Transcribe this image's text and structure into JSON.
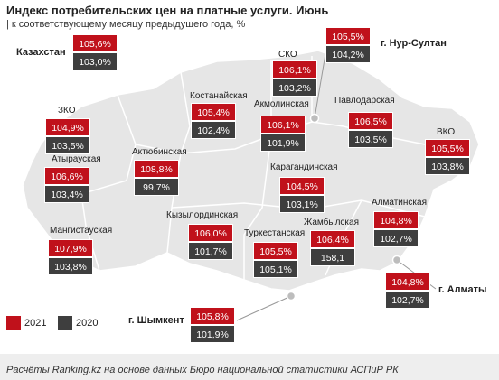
{
  "title": "Индекс потребительских цен на платные услуги. Июнь",
  "subtitle": "| к соответствующему месяцу предыдущего года, %",
  "colors": {
    "y2021": "#c0111b",
    "y2020": "#3e3e3e",
    "map_fill": "#e6e6e6",
    "map_border": "#ffffff"
  },
  "legend": [
    {
      "label": "2021"
    },
    {
      "label": "2020"
    }
  ],
  "regions": [
    {
      "name": "Казахстан",
      "v2021": "105,6%",
      "v2020": "103,0%"
    },
    {
      "name": "г. Нур-Султан",
      "v2021": "105,5%",
      "v2020": "104,2%"
    },
    {
      "name": "СКО",
      "v2021": "106,1%",
      "v2020": "103,2%"
    },
    {
      "name": "Костанайская",
      "v2021": "105,4%",
      "v2020": "102,4%"
    },
    {
      "name": "Акмолинская",
      "v2021": "106,1%",
      "v2020": "101,9%"
    },
    {
      "name": "Павлодарская",
      "v2021": "106,5%",
      "v2020": "103,5%"
    },
    {
      "name": "ЗКО",
      "v2021": "104,9%",
      "v2020": "103,5%"
    },
    {
      "name": "Актюбинская",
      "v2021": "108,8%",
      "v2020": "99,7%"
    },
    {
      "name": "ВКО",
      "v2021": "105,5%",
      "v2020": "103,8%"
    },
    {
      "name": "Атырауская",
      "v2021": "106,6%",
      "v2020": "103,4%"
    },
    {
      "name": "Карагандинская",
      "v2021": "104,5%",
      "v2020": "103,1%"
    },
    {
      "name": "Алматинская",
      "v2021": "104,8%",
      "v2020": "102,7%"
    },
    {
      "name": "Кызылординская",
      "v2021": "106,0%",
      "v2020": "101,7%"
    },
    {
      "name": "Мангистауская",
      "v2021": "107,9%",
      "v2020": "103,8%"
    },
    {
      "name": "Туркестанская",
      "v2021": "105,5%",
      "v2020": "105,1%"
    },
    {
      "name": "Жамбылская",
      "v2021": "106,4%",
      "v2020": "158,1"
    },
    {
      "name": "г. Алматы",
      "v2021": "104,8%",
      "v2020": "102,7%"
    },
    {
      "name": "г. Шымкент",
      "v2021": "105,8%",
      "v2020": "101,9%"
    }
  ],
  "footer": "Расчёты Ranking.kz на основе данных Бюро национальной  статистики АСПиР РК"
}
